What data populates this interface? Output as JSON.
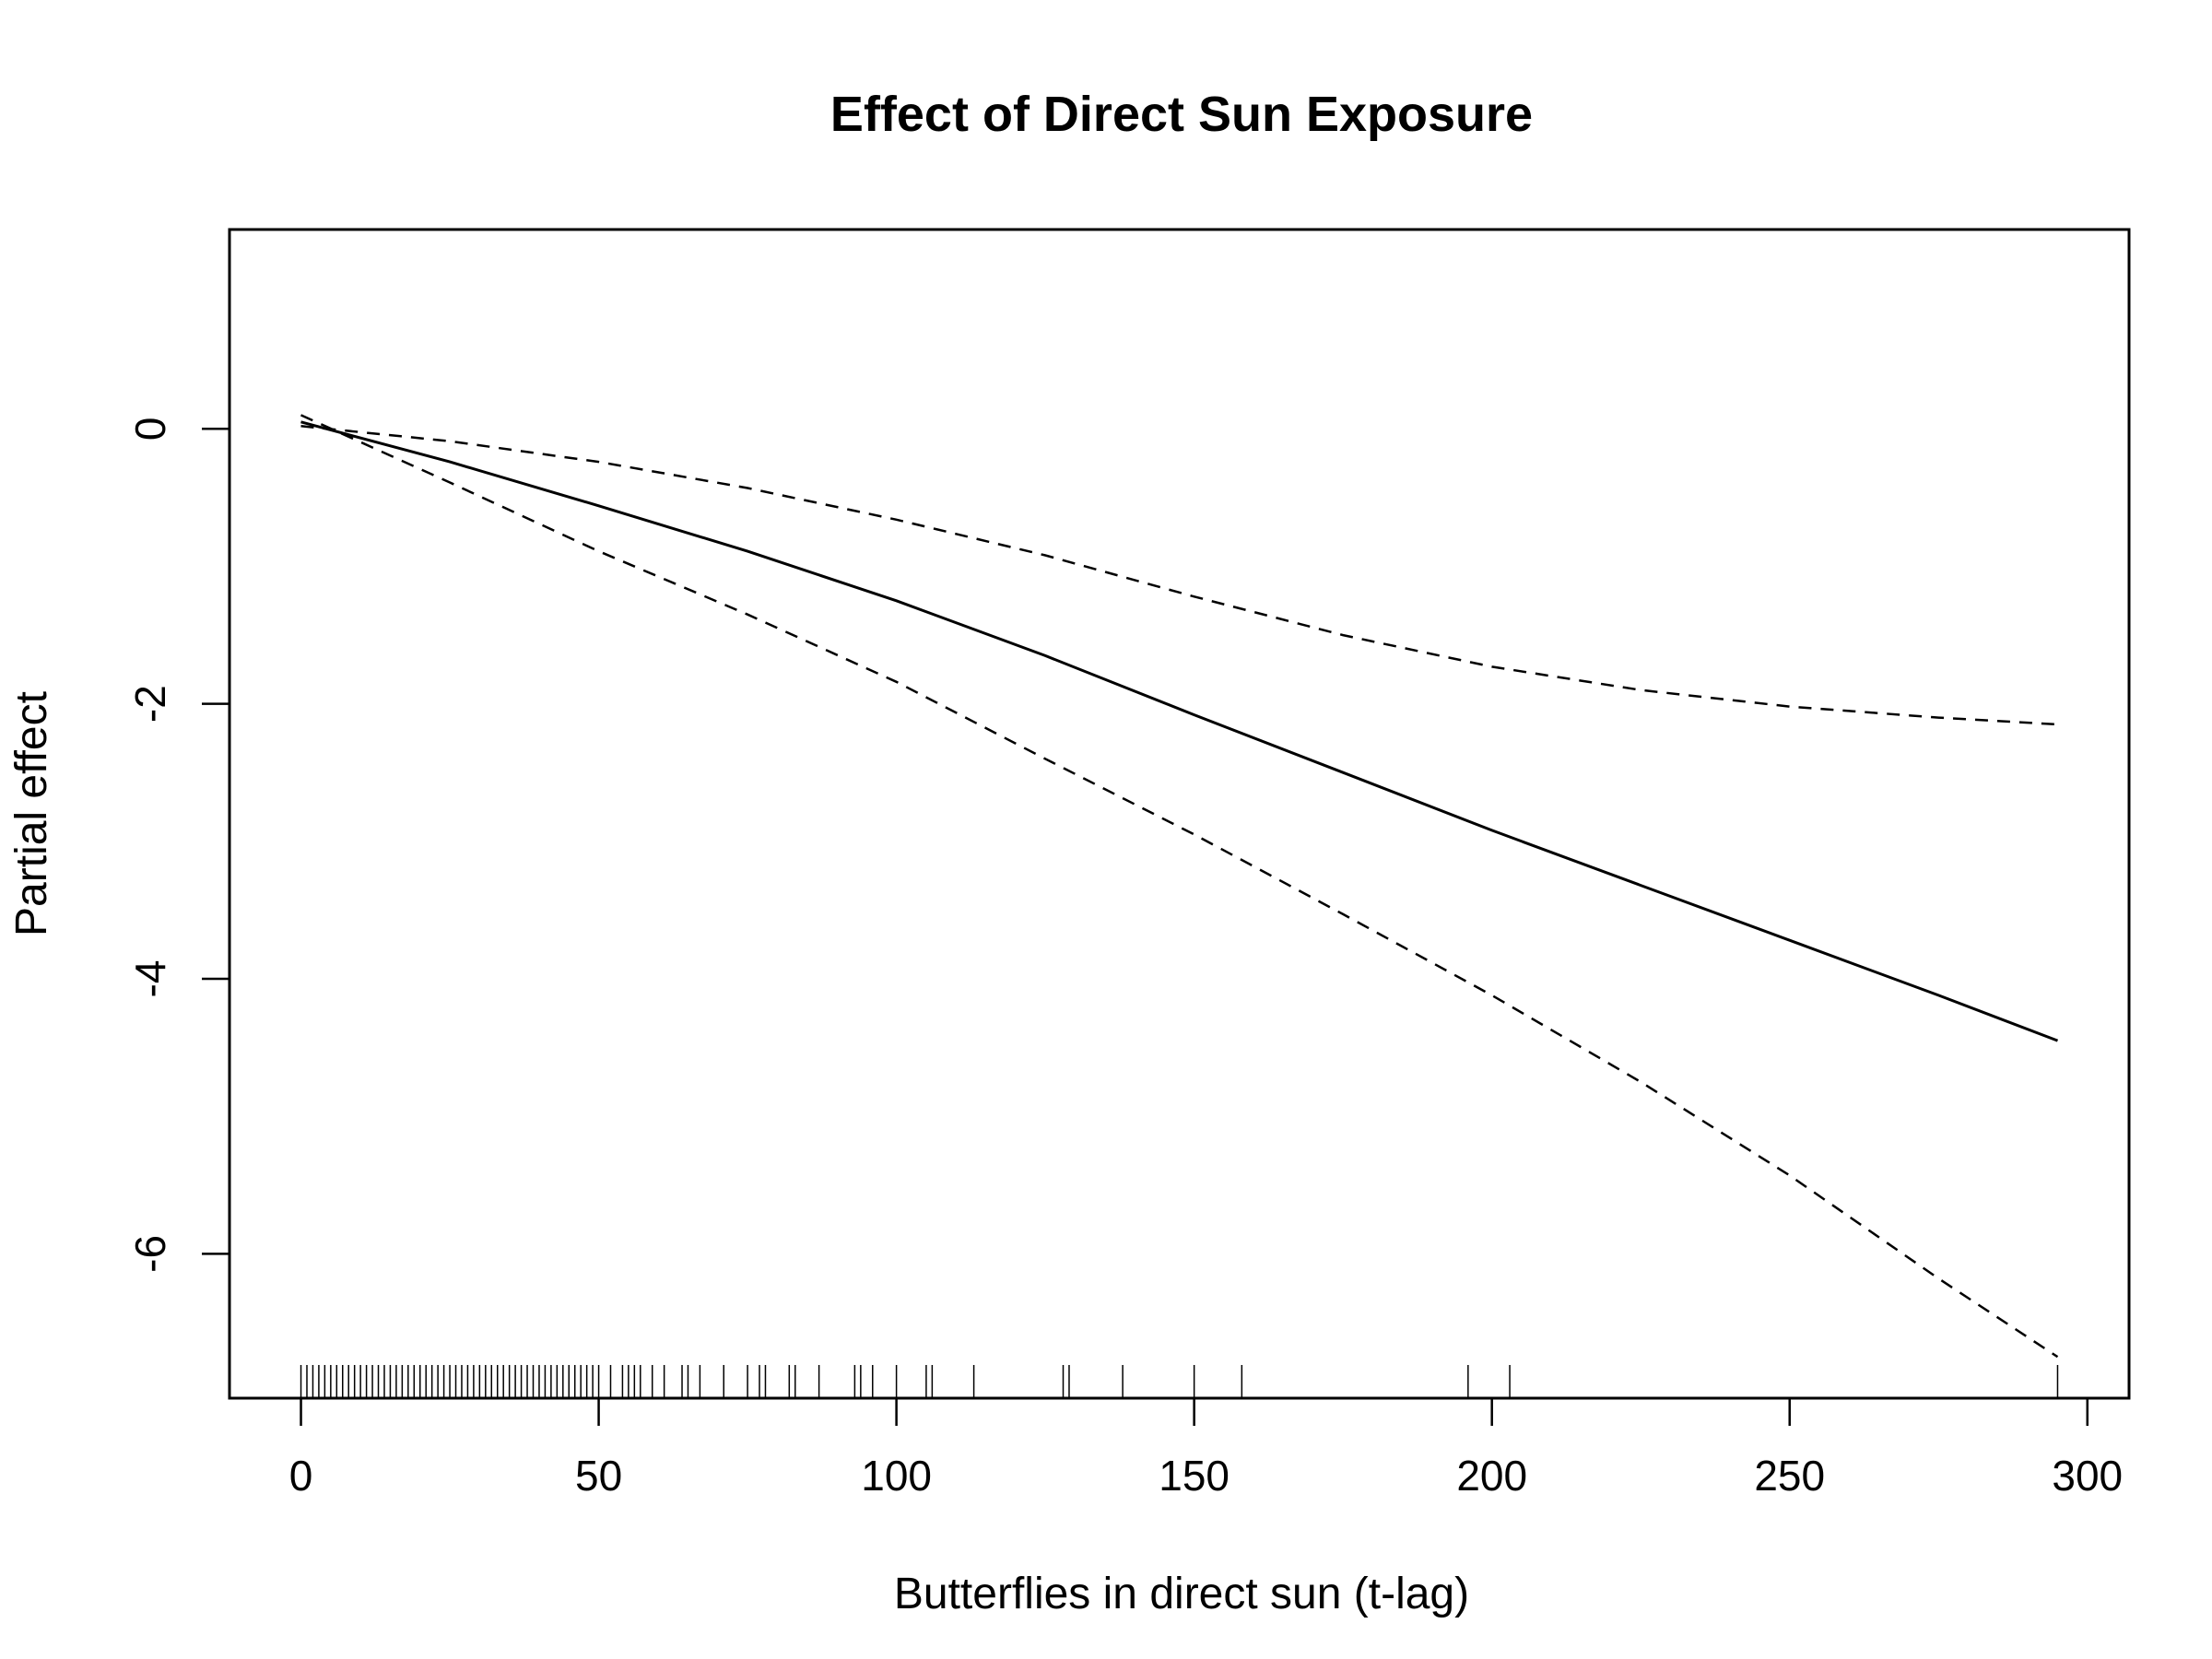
{
  "chart_data": {
    "type": "line",
    "title": "Effect of Direct Sun Exposure",
    "xlabel": "Butterflies in direct sun (t-lag)",
    "ylabel": "Partial effect",
    "xlim": [
      -12,
      307
    ],
    "ylim": [
      -7.05,
      1.45
    ],
    "x_ticks": [
      0,
      50,
      100,
      150,
      200,
      250,
      300
    ],
    "x_tick_labels": [
      "0",
      "50",
      "100",
      "150",
      "200",
      "250",
      "300"
    ],
    "y_ticks": [
      0,
      -2,
      -4,
      -6
    ],
    "y_tick_labels": [
      "0",
      "-2",
      "-4",
      "-6"
    ],
    "grid": false,
    "legend": "none",
    "series": [
      {
        "style": "solid",
        "x": [
          0,
          25,
          50,
          75,
          100,
          125,
          150,
          175,
          200,
          225,
          250,
          275,
          295
        ],
        "y": [
          0.05,
          -0.24,
          -0.56,
          -0.89,
          -1.25,
          -1.65,
          -2.08,
          -2.5,
          -2.92,
          -3.32,
          -3.72,
          -4.12,
          -4.45
        ]
      },
      {
        "style": "dashed",
        "x": [
          0,
          25,
          50,
          75,
          100,
          125,
          150,
          175,
          200,
          225,
          250,
          275,
          295
        ],
        "y": [
          0.02,
          -0.09,
          -0.24,
          -0.43,
          -0.66,
          -0.92,
          -1.22,
          -1.5,
          -1.73,
          -1.9,
          -2.02,
          -2.1,
          -2.15
        ]
      },
      {
        "style": "dashed",
        "x": [
          0,
          25,
          50,
          75,
          100,
          125,
          150,
          175,
          200,
          225,
          250,
          275,
          295
        ],
        "y": [
          0.1,
          -0.39,
          -0.89,
          -1.35,
          -1.84,
          -2.4,
          -2.95,
          -3.53,
          -4.12,
          -4.75,
          -5.43,
          -6.18,
          -6.75
        ]
      }
    ],
    "rug": [
      0,
      1,
      2,
      3,
      4,
      5,
      6,
      7,
      8,
      9,
      10,
      11,
      12,
      13,
      14,
      15,
      16,
      17,
      18,
      19,
      20,
      21,
      22,
      23,
      24,
      25,
      26,
      27,
      28,
      29,
      30,
      31,
      32,
      33,
      34,
      35,
      36,
      37,
      38,
      39,
      40,
      41,
      42,
      43,
      44,
      45,
      46,
      47,
      48,
      49,
      50,
      52,
      54,
      55,
      56,
      57,
      59,
      61,
      64,
      65,
      67,
      71,
      75,
      77,
      78,
      82,
      83,
      87,
      93,
      94,
      96,
      100,
      105,
      106,
      113,
      128,
      129,
      138,
      150,
      158,
      196,
      203,
      295
    ]
  }
}
